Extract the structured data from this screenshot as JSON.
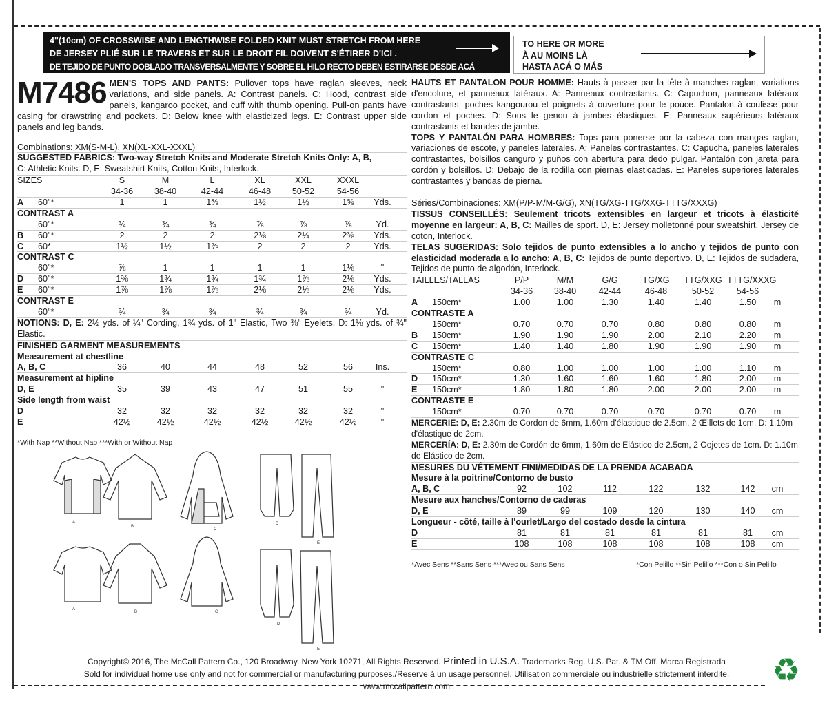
{
  "banner": {
    "lines": [
      "4\"(10cm) OF CROSSWISE AND LENGTHWISE FOLDED KNIT MUST STRETCH FROM HERE",
      "DE JERSEY PLIÉ SUR LE TRAVERS ET SUR LE DROIT FIL DOIVENT S'ÉTIRER D'ICI .",
      "DE TEJIDO DE PUNTO DOBLADO TRANSVERSALMENTE Y SOBRE EL HILO RECTO DEBEN ESTIRARSE DESDE ACÁ"
    ],
    "to_here": [
      "TO HERE OR MORE",
      "À AU MOINS LÀ",
      "HASTA ACÁ O MÁS"
    ]
  },
  "pattern_number": "M7486",
  "left": {
    "title": "MEN'S TOPS AND PANTS:",
    "desc": " Pullover tops have raglan sleeves, neck variations, and side panels. A: Contrast panels. C: Hood, contrast side panels, kangaroo pocket, and cuff with thumb opening. Pull-on pants have casing for drawstring and pockets. D: Below knee with elasticized legs. E: Contrast upper side panels and leg bands.",
    "combinations": "Combinations: XM(S-M-L), XN(XL-XXL-XXXL)",
    "fabrics_title": "SUGGESTED FABRICS: Two-way Stretch Knits and Moderate Stretch Knits Only: A, B,",
    "fabrics_text": "C: Athletic Knits. D, E: Sweatshirt Knits, Cotton Knits, Interlock.",
    "sizes_label": "SIZES",
    "sizes": [
      "S",
      "M",
      "L",
      "XL",
      "XXL",
      "XXXL"
    ],
    "ranges": [
      "34-36",
      "38-40",
      "42-44",
      "46-48",
      "50-52",
      "54-56"
    ],
    "rows": [
      {
        "label": "A",
        "sub": "60\"*",
        "vals": [
          "1",
          "1",
          "1⅜",
          "1½",
          "1½",
          "1⅝"
        ],
        "unit": "Yds."
      },
      {
        "heading": "CONTRAST A"
      },
      {
        "label": "",
        "sub": "60\"*",
        "vals": [
          "¾",
          "¾",
          "¾",
          "⅞",
          "⅞",
          "⅞"
        ],
        "unit": "Yd."
      },
      {
        "label": "B",
        "sub": "60\"*",
        "vals": [
          "2",
          "2",
          "2",
          "2⅛",
          "2¼",
          "2⅜"
        ],
        "unit": "Yds."
      },
      {
        "label": "C",
        "sub": "60*",
        "vals": [
          "1½",
          "1½",
          "1⅞",
          "2",
          "2",
          "2"
        ],
        "unit": "Yds."
      },
      {
        "heading": "CONTRAST C"
      },
      {
        "label": "",
        "sub": "60\"*",
        "vals": [
          "⅞",
          "1",
          "1",
          "1",
          "1",
          "1⅛"
        ],
        "unit": "\""
      },
      {
        "label": "D",
        "sub": "60\"*",
        "vals": [
          "1⅜",
          "1¾",
          "1¾",
          "1¾",
          "1⅞",
          "2⅛"
        ],
        "unit": "Yds."
      },
      {
        "label": "E",
        "sub": "60\"*",
        "vals": [
          "1⅞",
          "1⅞",
          "1⅞",
          "2⅛",
          "2⅛",
          "2⅛"
        ],
        "unit": "Yds."
      },
      {
        "heading": "CONTRAST E"
      },
      {
        "label": "",
        "sub": "60\"*",
        "vals": [
          "¾",
          "¾",
          "¾",
          "¾",
          "¾",
          "¾"
        ],
        "unit": "Yd."
      }
    ],
    "notions_title": "NOTIONS: D, E:",
    "notions_text": " 2½ yds. of ¼\" Cording, 1¾ yds. of 1\" Elastic, Two ⅜\" Eyelets. D: 1⅛ yds. of ¾\" Elastic.",
    "measure_rows": [
      {
        "heading": "FINISHED GARMENT MEASUREMENTS"
      },
      {
        "heading": "Measurement at chestline"
      },
      {
        "label": "A, B, C",
        "vals": [
          "36",
          "40",
          "44",
          "48",
          "52",
          "56"
        ],
        "unit": "Ins."
      },
      {
        "heading": "Measurement at hipline"
      },
      {
        "label": "D, E",
        "vals": [
          "35",
          "39",
          "43",
          "47",
          "51",
          "55"
        ],
        "unit": "\""
      },
      {
        "heading": "Side length from waist"
      },
      {
        "label": "D",
        "vals": [
          "32",
          "32",
          "32",
          "32",
          "32",
          "32"
        ],
        "unit": "\""
      },
      {
        "label": "E",
        "vals": [
          "42½",
          "42½",
          "42½",
          "42½",
          "42½",
          "42½"
        ],
        "unit": "\""
      }
    ],
    "footnote": "*With Nap **Without Nap ***With or Without Nap"
  },
  "right": {
    "fr_title": "HAUTS ET PANTALON POUR HOMME:",
    "fr_desc": " Hauts à passer par la tête à manches raglan, variations d'encolure, et panneaux latéraux. A: Panneaux contrastants. C: Capuchon, panneaux latéraux contrastants, poches kangourou et poignets à ouverture pour le pouce. Pantalon à coulisse pour cordon et poches. D: Sous le genou à jambes élastiques. E: Panneaux supérieurs latéraux contrastants et bandes de jambe.",
    "es_title": "TOPS Y PANTALÓN PARA HOMBRES:",
    "es_desc": " Tops para ponerse por la cabeza con mangas raglan, variaciones de escote, y paneles laterales. A: Paneles contrastantes. C: Capucha, paneles laterales contrastantes, bolsillos canguro y puños con abertura para dedo pulgar. Pantalón con jareta para cordón y bolsillos. D: Debajo de la rodilla con piernas elasticadas. E: Paneles superiores laterales contrastantes y bandas de pierna.",
    "combinations": "Séries/Combinaciones: XM(P/P-M/M-G/G), XN(TG/XG-TTG/XXG-TTTG/XXXG)",
    "tissus_title": "TISSUS CONSEILLÉS: Seulement tricots extensibles en largeur et tricots à élasticité moyenne en largeur: A, B, C:",
    "tissus_text": " Mailles de sport. D, E: Jersey molletonné pour sweatshirt, Jersey de coton, Interlock.",
    "telas_title": "TELAS SUGERIDAS: Solo tejidos de punto extensibles a lo ancho y tejidos de punto con elasticidad moderada a lo ancho: A, B, C:",
    "telas_text": " Tejidos de punto deportivo. D, E: Tejidos de sudadera, Tejidos de punto de algodón, Interlock.",
    "sizes_label": "TAILLES/TALLAS",
    "sizes": [
      "P/P",
      "M/M",
      "G/G",
      "TG/XG",
      "TTG/XXG",
      "TTTG/XXXG"
    ],
    "ranges": [
      "34-36",
      "38-40",
      "42-44",
      "46-48",
      "50-52",
      "54-56"
    ],
    "rows": [
      {
        "label": "A",
        "sub": "150cm*",
        "vals": [
          "1.00",
          "1.00",
          "1.30",
          "1.40",
          "1.40",
          "1.50"
        ],
        "unit": "m"
      },
      {
        "heading": "CONTRASTE A"
      },
      {
        "label": "",
        "sub": "150cm*",
        "vals": [
          "0.70",
          "0.70",
          "0.70",
          "0.80",
          "0.80",
          "0.80"
        ],
        "unit": "m"
      },
      {
        "label": "B",
        "sub": "150cm*",
        "vals": [
          "1.90",
          "1.90",
          "1.90",
          "2.00",
          "2.10",
          "2.20"
        ],
        "unit": "m"
      },
      {
        "label": "C",
        "sub": "150cm*",
        "vals": [
          "1.40",
          "1.40",
          "1.80",
          "1.90",
          "1.90",
          "1.90"
        ],
        "unit": "m"
      },
      {
        "heading": "CONTRASTE C"
      },
      {
        "label": "",
        "sub": "150cm*",
        "vals": [
          "0.80",
          "1.00",
          "1.00",
          "1.00",
          "1.00",
          "1.10"
        ],
        "unit": "m"
      },
      {
        "label": "D",
        "sub": "150cm*",
        "vals": [
          "1.30",
          "1.60",
          "1.60",
          "1.60",
          "1.80",
          "2.00"
        ],
        "unit": "m"
      },
      {
        "label": "E",
        "sub": "150cm*",
        "vals": [
          "1.80",
          "1.80",
          "1.80",
          "2.00",
          "2.00",
          "2.00"
        ],
        "unit": "m"
      },
      {
        "heading": "CONTRASTE E"
      },
      {
        "label": "",
        "sub": "150cm*",
        "vals": [
          "0.70",
          "0.70",
          "0.70",
          "0.70",
          "0.70",
          "0.70"
        ],
        "unit": "m"
      }
    ],
    "mercerie_title": "MERCERIE: D, E:",
    "mercerie_text": " 2.30m de Cordon de 6mm, 1.60m d'élastique de 2.5cm, 2 Œillets de 1cm. D: 1.10m d'élastique de 2cm.",
    "merceria_title": "MERCERÍA: D, E:",
    "merceria_text": " 2.30m de Cordón de 6mm, 1.60m de Elástico de 2.5cm, 2 Oojetes de 1cm. D: 1.10m de Elástico de 2cm.",
    "measure_rows": [
      {
        "heading": "MESURES DU VÊTEMENT FINI/MEDIDAS DE LA PRENDA ACABADA"
      },
      {
        "heading": "Mesure à la poitrine/Contorno de busto"
      },
      {
        "label": "A, B, C",
        "vals": [
          "92",
          "102",
          "112",
          "122",
          "132",
          "142"
        ],
        "unit": "cm"
      },
      {
        "heading": "Mesure aux hanches/Contorno de caderas"
      },
      {
        "label": "D, E",
        "vals": [
          "89",
          "99",
          "109",
          "120",
          "130",
          "140"
        ],
        "unit": "cm"
      },
      {
        "heading": "Longueur - côté, taille à l'ourlet/Largo del costado desde la cintura"
      },
      {
        "label": "D",
        "vals": [
          "81",
          "81",
          "81",
          "81",
          "81",
          "81"
        ],
        "unit": "cm"
      },
      {
        "label": "E",
        "vals": [
          "108",
          "108",
          "108",
          "108",
          "108",
          "108"
        ],
        "unit": "cm"
      }
    ],
    "footnote_fr": "*Avec Sens **Sans Sens ***Avec ou Sans Sens",
    "footnote_es": "*Con Pelillo **Sin Pelillo ***Con o Sin Pelillo"
  },
  "illustration_labels": [
    "A",
    "B",
    "C",
    "D",
    "E"
  ],
  "footer": {
    "copyright": "Copyright© 2016,  The McCall Pattern Co., 120 Broadway, New York 10271, All Rights Reserved.",
    "printed": "Printed in U.S.A.",
    "trademark": "Trademarks Reg. U.S. Pat. & TM Off. Marca Registrada",
    "usage": "Sold for individual home use only and not for commercial or manufacturing purposes./Reserve à un usage personnel. Utilisation commerciale ou industrielle strictement interdite.",
    "website": "www.mccallpattern.com",
    "recycle_icon": "recycle-icon",
    "recycle_color": "#1e8a3a"
  }
}
